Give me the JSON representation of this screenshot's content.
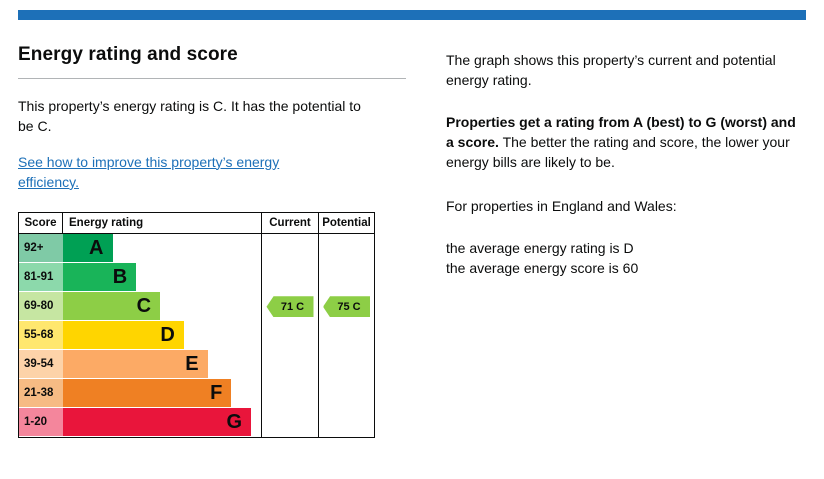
{
  "theme": {
    "accent_blue": "#1d70b8",
    "link_color": "#1d70b8",
    "border_color": "#0b0c0c",
    "rule_color": "#b1b4b6"
  },
  "left": {
    "title": "Energy rating and score",
    "summary": "This property’s energy rating is C. It has the potential to be C.",
    "link_text": "See how to improve this property’s energy efficiency."
  },
  "right": {
    "p1": "The graph shows this property’s current and potential energy rating.",
    "p2_bold": "Properties get a rating from A (best) to G (worst) and a score.",
    "p2_rest": " The better the rating and score, the lower your energy bills are likely to be.",
    "p3": "For properties in England and Wales:",
    "p4_line1": "the average energy rating is D",
    "p4_line2": "the average energy score is 60"
  },
  "chart_data": {
    "type": "bar",
    "title": "Energy rating and score",
    "columns": [
      "Score",
      "Energy rating",
      "Current",
      "Potential"
    ],
    "bands": [
      {
        "score_range": "92+",
        "letter": "A",
        "bar_color": "#00a054",
        "tint_color": "#7fcaa6",
        "width_pct": 25
      },
      {
        "score_range": "81-91",
        "letter": "B",
        "bar_color": "#19b459",
        "tint_color": "#8cd9ab",
        "width_pct": 37
      },
      {
        "score_range": "69-80",
        "letter": "C",
        "bar_color": "#8dce46",
        "tint_color": "#c6e6a2",
        "width_pct": 49
      },
      {
        "score_range": "55-68",
        "letter": "D",
        "bar_color": "#ffd500",
        "tint_color": "#ffe76e",
        "width_pct": 61
      },
      {
        "score_range": "39-54",
        "letter": "E",
        "bar_color": "#fcaa65",
        "tint_color": "#fdd3a9",
        "width_pct": 73
      },
      {
        "score_range": "21-38",
        "letter": "F",
        "bar_color": "#ef8023",
        "tint_color": "#f6bb84",
        "width_pct": 85
      },
      {
        "score_range": "1-20",
        "letter": "G",
        "bar_color": "#e9153b",
        "tint_color": "#f4869c",
        "width_pct": 95
      }
    ],
    "current": {
      "score": 71,
      "band": "C",
      "label": "71 C",
      "color": "#8dce46"
    },
    "potential": {
      "score": 75,
      "band": "C",
      "label": "75 C",
      "color": "#8dce46"
    }
  }
}
